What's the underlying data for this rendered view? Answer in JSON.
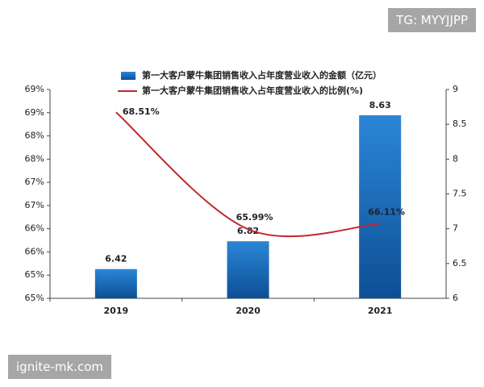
{
  "chart_data": {
    "type": "bar",
    "categories": [
      "2019",
      "2020",
      "2021"
    ],
    "series": [
      {
        "name": "第一大客户蒙牛集团销售收入占年度营业收入的金额（亿元）",
        "type": "bar",
        "axis": "y2",
        "color": "#1d6fc2",
        "values": [
          6.42,
          6.82,
          8.63
        ]
      },
      {
        "name": "第一大客户蒙牛集团销售收入占年度营业收入的比例(%)",
        "type": "line",
        "axis": "y",
        "color": "#c0282d",
        "values": [
          68.51,
          65.99,
          66.11
        ],
        "value_labels": [
          "68.51%",
          "65.99%",
          "66.11%"
        ]
      }
    ],
    "ylim": [
      64.5,
      69
    ],
    "yticks": [
      {
        "value": 64.5,
        "label": "65%"
      },
      {
        "value": 65,
        "label": "65%"
      },
      {
        "value": 65.5,
        "label": "66%"
      },
      {
        "value": 66,
        "label": "66%"
      },
      {
        "value": 66.5,
        "label": "67%"
      },
      {
        "value": 67,
        "label": "67%"
      },
      {
        "value": 67.5,
        "label": "68%"
      },
      {
        "value": 68,
        "label": "68%"
      },
      {
        "value": 68.5,
        "label": "69%"
      },
      {
        "value": 69,
        "label": "69%"
      }
    ],
    "y2lim": [
      6,
      9
    ],
    "y2ticks": [
      6,
      6.5,
      7,
      7.5,
      8,
      8.5,
      9
    ]
  },
  "watermarks": [
    "TG: MYYJJPP",
    "ignite-mk.com"
  ]
}
